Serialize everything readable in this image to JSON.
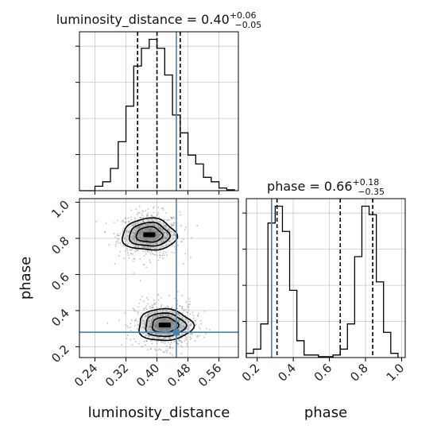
{
  "chart_data": {
    "type": "corner",
    "parameters": [
      "luminosity_distance",
      "phase"
    ],
    "truth_color": "#4682b4",
    "panels": [
      {
        "kind": "hist1d",
        "parameter": "luminosity_distance",
        "title": {
          "name": "luminosity_distance",
          "eq": " = ",
          "median": "0.40",
          "upper": "+0.06",
          "lower": "−0.05"
        },
        "xlim": [
          0.2,
          0.61
        ],
        "bins_edges": [
          0.2,
          0.22,
          0.24,
          0.26,
          0.28,
          0.3,
          0.32,
          0.34,
          0.36,
          0.38,
          0.4,
          0.42,
          0.44,
          0.46,
          0.48,
          0.5,
          0.52,
          0.54,
          0.56,
          0.58,
          0.6
        ],
        "counts": [
          0.0,
          0.0,
          0.5,
          1.0,
          2.5,
          5.5,
          9.5,
          14.0,
          16.0,
          17.0,
          16.0,
          13.0,
          8.5,
          6.5,
          4.0,
          3.0,
          1.5,
          1.0,
          0.3,
          0.1
        ],
        "quantiles": [
          0.35,
          0.4,
          0.46
        ],
        "truth": 0.45
      },
      {
        "kind": "hist2d",
        "x_parameter": "luminosity_distance",
        "y_parameter": "phase",
        "xlim": [
          0.2,
          0.61
        ],
        "ylim": [
          0.14,
          1.02
        ],
        "modes": [
          {
            "x": 0.38,
            "y": 0.82,
            "sx": 0.028,
            "sy": 0.045
          },
          {
            "x": 0.42,
            "y": 0.32,
            "sx": 0.028,
            "sy": 0.045
          }
        ],
        "truth": {
          "x": 0.45,
          "y": 0.28
        },
        "xticks": [
          "0.24",
          "0.32",
          "0.40",
          "0.48",
          "0.56"
        ],
        "yticks": [
          "0.2",
          "0.4",
          "0.6",
          "0.8",
          "1.0"
        ],
        "xlabel": "luminosity_distance",
        "ylabel": "phase"
      },
      {
        "kind": "hist1d",
        "parameter": "phase",
        "title": {
          "name": "phase",
          "eq": " = ",
          "median": "0.66",
          "upper": "+0.18",
          "lower": "−0.35"
        },
        "xlim": [
          0.14,
          1.02
        ],
        "bins_edges": [
          0.14,
          0.18,
          0.22,
          0.26,
          0.3,
          0.34,
          0.38,
          0.42,
          0.46,
          0.5,
          0.54,
          0.58,
          0.62,
          0.66,
          0.7,
          0.74,
          0.78,
          0.82,
          0.86,
          0.9,
          0.94,
          0.98
        ],
        "counts": [
          0.5,
          1.0,
          4.0,
          16.0,
          18.0,
          15.0,
          8.0,
          2.0,
          0.3,
          0.3,
          0.1,
          0.1,
          0.3,
          1.0,
          4.0,
          12.0,
          18.0,
          17.0,
          9.0,
          3.0,
          0.5
        ],
        "quantiles": [
          0.31,
          0.66,
          0.84
        ],
        "truth": 0.28,
        "xticks": [
          "0.2",
          "0.4",
          "0.6",
          "0.8",
          "1.0"
        ],
        "xlabel": "phase"
      }
    ],
    "hist1d_y_ticks_count": 4,
    "grid": true
  }
}
